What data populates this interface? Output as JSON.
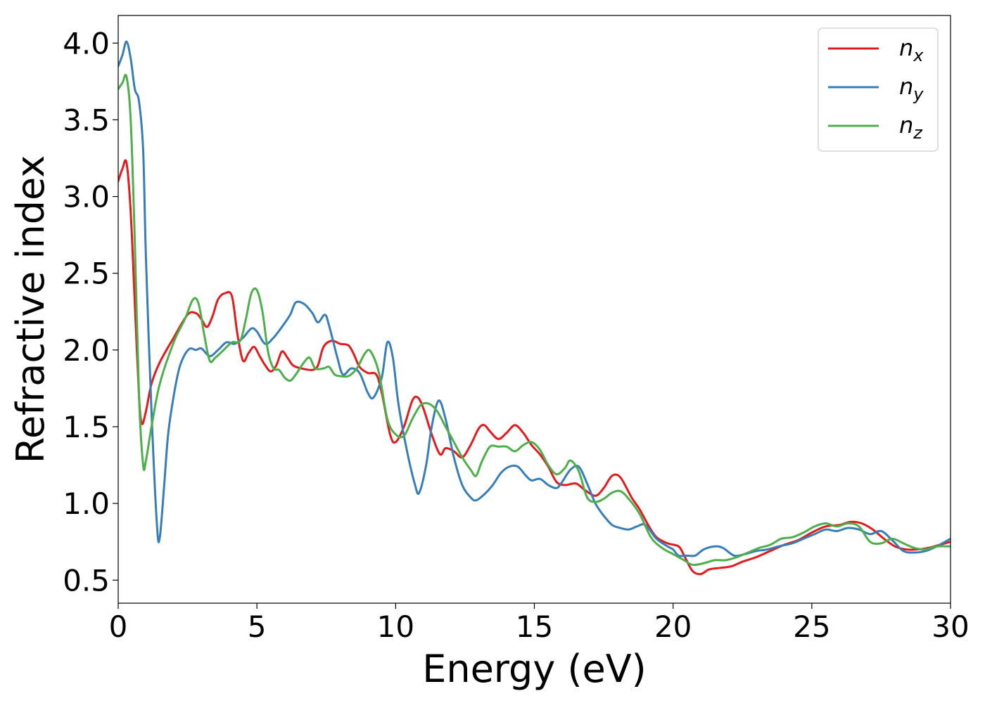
{
  "chart_data": {
    "type": "line",
    "xlabel": "Energy (eV)",
    "ylabel": "Refractive index",
    "xlim": [
      0,
      30
    ],
    "ylim": [
      0.35,
      4.18
    ],
    "xticks": [
      0,
      5,
      10,
      15,
      20,
      25,
      30
    ],
    "xtick_labels": [
      "0",
      "5",
      "10",
      "15",
      "20",
      "25",
      "30"
    ],
    "yticks": [
      0.5,
      1.0,
      1.5,
      2.0,
      2.5,
      3.0,
      3.5,
      4.0
    ],
    "ytick_labels": [
      "0.5",
      "1.0",
      "1.5",
      "2.0",
      "2.5",
      "3.0",
      "3.5",
      "4.0"
    ],
    "grid": false,
    "legend_position": "top-right",
    "series": [
      {
        "name": "n_x",
        "label_base": "n",
        "label_sub": "x",
        "color": "#e41a1c",
        "points": [
          [
            0,
            3.1
          ],
          [
            0.15,
            3.18
          ],
          [
            0.3,
            3.22
          ],
          [
            0.45,
            2.9
          ],
          [
            0.6,
            2.3
          ],
          [
            0.75,
            1.7
          ],
          [
            0.85,
            1.52
          ],
          [
            1.0,
            1.6
          ],
          [
            1.2,
            1.78
          ],
          [
            1.5,
            1.92
          ],
          [
            2.0,
            2.08
          ],
          [
            2.5,
            2.23
          ],
          [
            2.8,
            2.24
          ],
          [
            3.0,
            2.2
          ],
          [
            3.2,
            2.15
          ],
          [
            3.4,
            2.22
          ],
          [
            3.6,
            2.33
          ],
          [
            3.85,
            2.37
          ],
          [
            4.1,
            2.35
          ],
          [
            4.3,
            2.1
          ],
          [
            4.5,
            1.93
          ],
          [
            4.7,
            1.98
          ],
          [
            4.9,
            2.02
          ],
          [
            5.1,
            1.96
          ],
          [
            5.3,
            1.9
          ],
          [
            5.5,
            1.86
          ],
          [
            5.7,
            1.9
          ],
          [
            5.9,
            1.99
          ],
          [
            6.1,
            1.95
          ],
          [
            6.3,
            1.9
          ],
          [
            6.6,
            1.88
          ],
          [
            7.0,
            1.87
          ],
          [
            7.2,
            1.9
          ],
          [
            7.4,
            2.02
          ],
          [
            7.7,
            2.06
          ],
          [
            8.0,
            2.04
          ],
          [
            8.3,
            2.03
          ],
          [
            8.5,
            1.97
          ],
          [
            8.7,
            1.89
          ],
          [
            9.0,
            1.85
          ],
          [
            9.3,
            1.84
          ],
          [
            9.5,
            1.72
          ],
          [
            9.8,
            1.45
          ],
          [
            10.0,
            1.4
          ],
          [
            10.3,
            1.5
          ],
          [
            10.6,
            1.67
          ],
          [
            10.8,
            1.69
          ],
          [
            11.0,
            1.62
          ],
          [
            11.3,
            1.45
          ],
          [
            11.6,
            1.32
          ],
          [
            11.8,
            1.36
          ],
          [
            12.1,
            1.34
          ],
          [
            12.4,
            1.3
          ],
          [
            12.7,
            1.38
          ],
          [
            13.0,
            1.49
          ],
          [
            13.2,
            1.51
          ],
          [
            13.4,
            1.47
          ],
          [
            13.7,
            1.42
          ],
          [
            14.0,
            1.46
          ],
          [
            14.3,
            1.51
          ],
          [
            14.6,
            1.46
          ],
          [
            14.9,
            1.38
          ],
          [
            15.2,
            1.32
          ],
          [
            15.5,
            1.24
          ],
          [
            15.8,
            1.14
          ],
          [
            16.1,
            1.12
          ],
          [
            16.5,
            1.13
          ],
          [
            16.8,
            1.09
          ],
          [
            17.2,
            1.05
          ],
          [
            17.5,
            1.1
          ],
          [
            17.8,
            1.18
          ],
          [
            18.1,
            1.17
          ],
          [
            18.5,
            1.04
          ],
          [
            18.8,
            0.96
          ],
          [
            19.1,
            0.86
          ],
          [
            19.4,
            0.78
          ],
          [
            19.8,
            0.74
          ],
          [
            20.2,
            0.72
          ],
          [
            20.4,
            0.66
          ],
          [
            20.7,
            0.56
          ],
          [
            21.0,
            0.54
          ],
          [
            21.3,
            0.57
          ],
          [
            21.7,
            0.58
          ],
          [
            22.1,
            0.59
          ],
          [
            22.5,
            0.62
          ],
          [
            23.0,
            0.65
          ],
          [
            23.5,
            0.69
          ],
          [
            24.0,
            0.73
          ],
          [
            24.5,
            0.76
          ],
          [
            25.0,
            0.81
          ],
          [
            25.5,
            0.85
          ],
          [
            26.0,
            0.86
          ],
          [
            26.4,
            0.88
          ],
          [
            26.8,
            0.87
          ],
          [
            27.2,
            0.83
          ],
          [
            27.6,
            0.77
          ],
          [
            28.0,
            0.72
          ],
          [
            28.4,
            0.7
          ],
          [
            28.8,
            0.7
          ],
          [
            29.2,
            0.71
          ],
          [
            29.6,
            0.73
          ],
          [
            30.0,
            0.75
          ]
        ]
      },
      {
        "name": "n_y",
        "label_base": "n",
        "label_sub": "y",
        "color": "#377eb8",
        "points": [
          [
            0,
            3.85
          ],
          [
            0.15,
            3.92
          ],
          [
            0.3,
            4.01
          ],
          [
            0.45,
            3.9
          ],
          [
            0.6,
            3.7
          ],
          [
            0.75,
            3.62
          ],
          [
            0.9,
            3.3
          ],
          [
            1.0,
            2.6
          ],
          [
            1.2,
            1.6
          ],
          [
            1.4,
            0.85
          ],
          [
            1.5,
            0.78
          ],
          [
            1.65,
            1.1
          ],
          [
            1.8,
            1.45
          ],
          [
            2.0,
            1.7
          ],
          [
            2.2,
            1.88
          ],
          [
            2.4,
            1.97
          ],
          [
            2.6,
            2.01
          ],
          [
            2.8,
            2.0
          ],
          [
            3.0,
            2.01
          ],
          [
            3.3,
            1.96
          ],
          [
            3.6,
            2.0
          ],
          [
            3.9,
            2.05
          ],
          [
            4.2,
            2.04
          ],
          [
            4.5,
            2.08
          ],
          [
            4.8,
            2.14
          ],
          [
            5.0,
            2.12
          ],
          [
            5.3,
            2.04
          ],
          [
            5.6,
            2.08
          ],
          [
            5.9,
            2.15
          ],
          [
            6.2,
            2.23
          ],
          [
            6.4,
            2.31
          ],
          [
            6.7,
            2.3
          ],
          [
            7.0,
            2.24
          ],
          [
            7.2,
            2.18
          ],
          [
            7.45,
            2.23
          ],
          [
            7.6,
            2.16
          ],
          [
            7.9,
            1.95
          ],
          [
            8.1,
            1.84
          ],
          [
            8.4,
            1.88
          ],
          [
            8.7,
            1.85
          ],
          [
            9.0,
            1.72
          ],
          [
            9.2,
            1.69
          ],
          [
            9.5,
            1.82
          ],
          [
            9.7,
            2.05
          ],
          [
            9.9,
            1.95
          ],
          [
            10.1,
            1.65
          ],
          [
            10.4,
            1.35
          ],
          [
            10.7,
            1.12
          ],
          [
            10.85,
            1.07
          ],
          [
            11.1,
            1.25
          ],
          [
            11.3,
            1.5
          ],
          [
            11.55,
            1.67
          ],
          [
            11.8,
            1.55
          ],
          [
            12.1,
            1.3
          ],
          [
            12.4,
            1.12
          ],
          [
            12.7,
            1.04
          ],
          [
            12.9,
            1.02
          ],
          [
            13.2,
            1.06
          ],
          [
            13.5,
            1.12
          ],
          [
            13.8,
            1.2
          ],
          [
            14.1,
            1.24
          ],
          [
            14.4,
            1.24
          ],
          [
            14.7,
            1.18
          ],
          [
            14.9,
            1.15
          ],
          [
            15.2,
            1.16
          ],
          [
            15.5,
            1.12
          ],
          [
            15.8,
            1.1
          ],
          [
            16.0,
            1.14
          ],
          [
            16.3,
            1.22
          ],
          [
            16.6,
            1.24
          ],
          [
            16.9,
            1.13
          ],
          [
            17.2,
            1.0
          ],
          [
            17.5,
            0.92
          ],
          [
            17.8,
            0.86
          ],
          [
            18.1,
            0.84
          ],
          [
            18.4,
            0.83
          ],
          [
            18.7,
            0.85
          ],
          [
            19.0,
            0.86
          ],
          [
            19.4,
            0.77
          ],
          [
            19.8,
            0.72
          ],
          [
            20.0,
            0.7
          ],
          [
            20.2,
            0.66
          ],
          [
            20.5,
            0.66
          ],
          [
            20.8,
            0.66
          ],
          [
            21.1,
            0.7
          ],
          [
            21.5,
            0.72
          ],
          [
            21.8,
            0.71
          ],
          [
            22.2,
            0.66
          ],
          [
            22.6,
            0.67
          ],
          [
            23.0,
            0.69
          ],
          [
            23.4,
            0.7
          ],
          [
            23.8,
            0.72
          ],
          [
            24.3,
            0.74
          ],
          [
            24.7,
            0.77
          ],
          [
            25.1,
            0.8
          ],
          [
            25.5,
            0.83
          ],
          [
            25.9,
            0.82
          ],
          [
            26.3,
            0.84
          ],
          [
            26.7,
            0.83
          ],
          [
            27.1,
            0.8
          ],
          [
            27.5,
            0.82
          ],
          [
            27.9,
            0.76
          ],
          [
            28.3,
            0.69
          ],
          [
            28.7,
            0.68
          ],
          [
            29.1,
            0.69
          ],
          [
            29.5,
            0.72
          ],
          [
            30.0,
            0.77
          ]
        ]
      },
      {
        "name": "n_z",
        "label_base": "n",
        "label_sub": "z",
        "color": "#4daf4a",
        "points": [
          [
            0,
            3.7
          ],
          [
            0.15,
            3.74
          ],
          [
            0.3,
            3.78
          ],
          [
            0.45,
            3.5
          ],
          [
            0.6,
            2.7
          ],
          [
            0.75,
            1.7
          ],
          [
            0.9,
            1.25
          ],
          [
            1.0,
            1.28
          ],
          [
            1.2,
            1.5
          ],
          [
            1.5,
            1.78
          ],
          [
            2.0,
            2.05
          ],
          [
            2.4,
            2.2
          ],
          [
            2.7,
            2.33
          ],
          [
            2.9,
            2.3
          ],
          [
            3.1,
            2.1
          ],
          [
            3.3,
            1.93
          ],
          [
            3.5,
            1.95
          ],
          [
            3.8,
            2.0
          ],
          [
            4.1,
            2.05
          ],
          [
            4.4,
            2.06
          ],
          [
            4.6,
            2.2
          ],
          [
            4.8,
            2.37
          ],
          [
            5.0,
            2.39
          ],
          [
            5.2,
            2.25
          ],
          [
            5.4,
            1.99
          ],
          [
            5.6,
            1.88
          ],
          [
            5.8,
            1.87
          ],
          [
            6.0,
            1.82
          ],
          [
            6.2,
            1.8
          ],
          [
            6.4,
            1.84
          ],
          [
            6.7,
            1.92
          ],
          [
            6.9,
            1.95
          ],
          [
            7.1,
            1.88
          ],
          [
            7.4,
            1.88
          ],
          [
            7.6,
            1.89
          ],
          [
            7.8,
            1.84
          ],
          [
            8.0,
            1.83
          ],
          [
            8.3,
            1.83
          ],
          [
            8.6,
            1.88
          ],
          [
            8.9,
            1.98
          ],
          [
            9.1,
            1.99
          ],
          [
            9.4,
            1.85
          ],
          [
            9.7,
            1.55
          ],
          [
            10.0,
            1.45
          ],
          [
            10.3,
            1.44
          ],
          [
            10.6,
            1.55
          ],
          [
            10.9,
            1.64
          ],
          [
            11.2,
            1.65
          ],
          [
            11.5,
            1.6
          ],
          [
            11.8,
            1.5
          ],
          [
            12.1,
            1.4
          ],
          [
            12.4,
            1.3
          ],
          [
            12.7,
            1.22
          ],
          [
            12.9,
            1.18
          ],
          [
            13.1,
            1.27
          ],
          [
            13.4,
            1.37
          ],
          [
            13.7,
            1.37
          ],
          [
            14.0,
            1.37
          ],
          [
            14.3,
            1.34
          ],
          [
            14.6,
            1.38
          ],
          [
            14.9,
            1.4
          ],
          [
            15.2,
            1.35
          ],
          [
            15.5,
            1.25
          ],
          [
            15.8,
            1.19
          ],
          [
            16.1,
            1.23
          ],
          [
            16.3,
            1.28
          ],
          [
            16.6,
            1.21
          ],
          [
            16.9,
            1.04
          ],
          [
            17.2,
            1.01
          ],
          [
            17.5,
            1.03
          ],
          [
            17.8,
            1.07
          ],
          [
            18.1,
            1.08
          ],
          [
            18.4,
            1.03
          ],
          [
            18.8,
            0.93
          ],
          [
            19.2,
            0.78
          ],
          [
            19.6,
            0.71
          ],
          [
            20.0,
            0.67
          ],
          [
            20.4,
            0.63
          ],
          [
            20.7,
            0.6
          ],
          [
            21.1,
            0.61
          ],
          [
            21.5,
            0.63
          ],
          [
            21.9,
            0.63
          ],
          [
            22.3,
            0.65
          ],
          [
            22.7,
            0.68
          ],
          [
            23.1,
            0.71
          ],
          [
            23.5,
            0.73
          ],
          [
            23.9,
            0.77
          ],
          [
            24.3,
            0.78
          ],
          [
            24.7,
            0.81
          ],
          [
            25.1,
            0.85
          ],
          [
            25.5,
            0.87
          ],
          [
            25.9,
            0.85
          ],
          [
            26.3,
            0.87
          ],
          [
            26.7,
            0.85
          ],
          [
            27.1,
            0.75
          ],
          [
            27.5,
            0.74
          ],
          [
            27.9,
            0.77
          ],
          [
            28.3,
            0.74
          ],
          [
            28.7,
            0.71
          ],
          [
            29.1,
            0.7
          ],
          [
            29.5,
            0.72
          ],
          [
            30.0,
            0.72
          ]
        ]
      }
    ]
  }
}
